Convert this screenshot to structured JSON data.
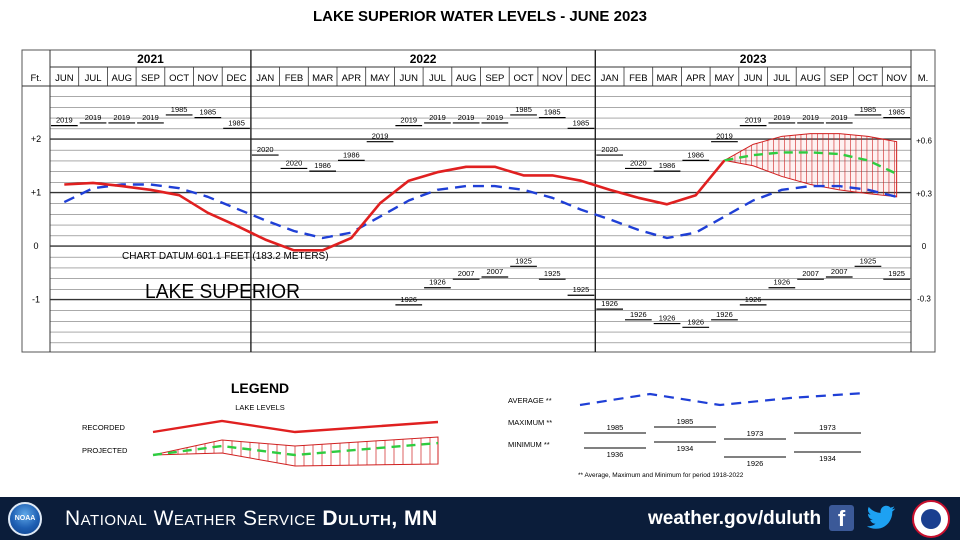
{
  "title": "LAKE SUPERIOR WATER LEVELS - JUNE 2023",
  "chart_data": {
    "type": "line",
    "title": "LAKE SUPERIOR WATER LEVELS - JUNE 2023",
    "left_axis_label": "Ft.",
    "right_axis_label": "M.",
    "left_ticks": [
      "+2",
      "+1",
      "0",
      "-1"
    ],
    "right_ticks": [
      "+0.6",
      "+0.3",
      "0",
      "-0.3"
    ],
    "left_tick_values": [
      2,
      1,
      0,
      -1
    ],
    "right_tick_values": [
      0.6,
      0.3,
      0,
      -0.3
    ],
    "ylim_ft": [
      -2,
      3
    ],
    "years": [
      {
        "label": "2021",
        "start": 0,
        "months": 7
      },
      {
        "label": "2022",
        "start": 7,
        "months": 12
      },
      {
        "label": "2023",
        "start": 19,
        "months": 11
      }
    ],
    "months": [
      "JUN",
      "JUL",
      "AUG",
      "SEP",
      "OCT",
      "NOV",
      "DEC",
      "JAN",
      "FEB",
      "MAR",
      "APR",
      "MAY",
      "JUN",
      "JUL",
      "AUG",
      "SEP",
      "OCT",
      "NOV",
      "DEC",
      "JAN",
      "FEB",
      "MAR",
      "APR",
      "MAY",
      "JUN",
      "JUL",
      "AUG",
      "SEP",
      "OCT",
      "NOV"
    ],
    "datum_text": "CHART DATUM  601.1 FEET (183.2 METERS)",
    "lake_name": "LAKE SUPERIOR",
    "series": [
      {
        "name": "RECORDED",
        "color": "#e02020",
        "style": "solid",
        "points": [
          [
            0,
            1.15
          ],
          [
            1,
            1.18
          ],
          [
            2,
            1.12
          ],
          [
            3,
            1.05
          ],
          [
            4,
            0.95
          ],
          [
            5,
            0.62
          ],
          [
            6,
            0.38
          ],
          [
            7,
            0.12
          ],
          [
            8,
            -0.08
          ],
          [
            9,
            -0.08
          ],
          [
            10,
            0.15
          ],
          [
            11,
            0.8
          ],
          [
            12,
            1.22
          ],
          [
            13,
            1.38
          ],
          [
            14,
            1.48
          ],
          [
            15,
            1.48
          ],
          [
            16,
            1.32
          ],
          [
            17,
            1.32
          ],
          [
            18,
            1.22
          ],
          [
            19,
            1.05
          ],
          [
            20,
            0.9
          ],
          [
            21,
            0.78
          ],
          [
            22,
            0.95
          ],
          [
            23,
            1.6
          ]
        ]
      },
      {
        "name": "AVERAGE",
        "color": "#1f3fd6",
        "style": "dashed",
        "points": [
          [
            0,
            0.82
          ],
          [
            1,
            1.08
          ],
          [
            2,
            1.15
          ],
          [
            3,
            1.15
          ],
          [
            4,
            1.08
          ],
          [
            5,
            0.92
          ],
          [
            6,
            0.7
          ],
          [
            7,
            0.48
          ],
          [
            8,
            0.28
          ],
          [
            9,
            0.15
          ],
          [
            10,
            0.25
          ],
          [
            11,
            0.55
          ],
          [
            12,
            0.85
          ],
          [
            13,
            1.05
          ],
          [
            14,
            1.12
          ],
          [
            15,
            1.12
          ],
          [
            16,
            1.05
          ],
          [
            17,
            0.9
          ],
          [
            18,
            0.68
          ],
          [
            19,
            0.5
          ],
          [
            20,
            0.3
          ],
          [
            21,
            0.15
          ],
          [
            22,
            0.25
          ],
          [
            23,
            0.55
          ],
          [
            24,
            0.85
          ],
          [
            25,
            1.05
          ],
          [
            26,
            1.12
          ],
          [
            27,
            1.12
          ],
          [
            28,
            1.05
          ],
          [
            29,
            0.92
          ]
        ]
      },
      {
        "name": "PROJECTED",
        "color": "#2ecc40",
        "style": "dashed",
        "points": [
          [
            23,
            1.6
          ],
          [
            24,
            1.7
          ],
          [
            25,
            1.75
          ],
          [
            26,
            1.75
          ],
          [
            27,
            1.72
          ],
          [
            28,
            1.6
          ],
          [
            29,
            1.35
          ]
        ]
      }
    ],
    "projection_band_upper": [
      [
        23,
        1.6
      ],
      [
        24,
        1.9
      ],
      [
        25,
        2.05
      ],
      [
        26,
        2.1
      ],
      [
        27,
        2.1
      ],
      [
        28,
        2.05
      ],
      [
        29,
        1.95
      ]
    ],
    "projection_band_lower": [
      [
        23,
        1.6
      ],
      [
        24,
        1.5
      ],
      [
        25,
        1.3
      ],
      [
        26,
        1.15
      ],
      [
        27,
        1.05
      ],
      [
        28,
        0.98
      ],
      [
        29,
        0.92
      ]
    ],
    "maximum": [
      {
        "m": 0,
        "year": "2019",
        "ft": 2.25
      },
      {
        "m": 1,
        "year": "2019",
        "ft": 2.3
      },
      {
        "m": 2,
        "year": "2019",
        "ft": 2.3
      },
      {
        "m": 3,
        "year": "2019",
        "ft": 2.3
      },
      {
        "m": 4,
        "year": "1985",
        "ft": 2.45
      },
      {
        "m": 5,
        "year": "1985",
        "ft": 2.4
      },
      {
        "m": 6,
        "year": "1985",
        "ft": 2.2
      },
      {
        "m": 7,
        "year": "2020",
        "ft": 1.7
      },
      {
        "m": 8,
        "year": "2020",
        "ft": 1.45
      },
      {
        "m": 9,
        "year": "1986",
        "ft": 1.4
      },
      {
        "m": 10,
        "year": "1986",
        "ft": 1.6
      },
      {
        "m": 11,
        "year": "2019",
        "ft": 1.95
      },
      {
        "m": 12,
        "year": "2019",
        "ft": 2.25
      },
      {
        "m": 13,
        "year": "2019",
        "ft": 2.3
      },
      {
        "m": 14,
        "year": "2019",
        "ft": 2.3
      },
      {
        "m": 15,
        "year": "2019",
        "ft": 2.3
      },
      {
        "m": 16,
        "year": "1985",
        "ft": 2.45
      },
      {
        "m": 17,
        "year": "1985",
        "ft": 2.4
      },
      {
        "m": 18,
        "year": "1985",
        "ft": 2.2
      },
      {
        "m": 19,
        "year": "2020",
        "ft": 1.7
      },
      {
        "m": 20,
        "year": "2020",
        "ft": 1.45
      },
      {
        "m": 21,
        "year": "1986",
        "ft": 1.4
      },
      {
        "m": 22,
        "year": "1986",
        "ft": 1.6
      },
      {
        "m": 23,
        "year": "2019",
        "ft": 1.95
      },
      {
        "m": 24,
        "year": "2019",
        "ft": 2.25
      },
      {
        "m": 25,
        "year": "2019",
        "ft": 2.3
      },
      {
        "m": 26,
        "year": "2019",
        "ft": 2.3
      },
      {
        "m": 27,
        "year": "2019",
        "ft": 2.3
      },
      {
        "m": 28,
        "year": "1985",
        "ft": 2.45
      },
      {
        "m": 29,
        "year": "1985",
        "ft": 2.4
      }
    ],
    "minimum": [
      {
        "m": 12,
        "year": "1926",
        "ft": -1.1
      },
      {
        "m": 13,
        "year": "1926",
        "ft": -0.78
      },
      {
        "m": 14,
        "year": "2007",
        "ft": -0.62
      },
      {
        "m": 15,
        "year": "2007",
        "ft": -0.58
      },
      {
        "m": 16,
        "year": "1925",
        "ft": -0.38
      },
      {
        "m": 17,
        "year": "1925",
        "ft": -0.62
      },
      {
        "m": 18,
        "year": "1925",
        "ft": -0.92
      },
      {
        "m": 19,
        "year": "1926",
        "ft": -1.18
      },
      {
        "m": 20,
        "year": "1926",
        "ft": -1.38
      },
      {
        "m": 21,
        "year": "1926",
        "ft": -1.45
      },
      {
        "m": 22,
        "year": "1926",
        "ft": -1.52
      },
      {
        "m": 23,
        "year": "1926",
        "ft": -1.38
      },
      {
        "m": 24,
        "year": "1926",
        "ft": -1.1
      },
      {
        "m": 25,
        "year": "1926",
        "ft": -0.78
      },
      {
        "m": 26,
        "year": "2007",
        "ft": -0.62
      },
      {
        "m": 27,
        "year": "2007",
        "ft": -0.58
      },
      {
        "m": 28,
        "year": "1925",
        "ft": -0.38
      },
      {
        "m": 29,
        "year": "1925",
        "ft": -0.62
      }
    ]
  },
  "legend": {
    "title": "LEGEND",
    "subtitle": "LAKE LEVELS",
    "recorded_label": "RECORDED",
    "projected_label": "PROJECTED",
    "average_label": "AVERAGE **",
    "maximum_label": "MAXIMUM **",
    "minimum_label": "MINIMUM **",
    "max_years": [
      "1985",
      "1985",
      "1973",
      "1973"
    ],
    "min_years": [
      "1936",
      "1934",
      "1926",
      "1934"
    ],
    "footnote": "** Average, Maximum and Minimum for period 1918-2022"
  },
  "footer": {
    "org_name": "National Weather Service",
    "office": "Duluth, MN",
    "url": "weather.gov/duluth",
    "noaa_logo_text": "NOAA",
    "fb_glyph": "f"
  }
}
